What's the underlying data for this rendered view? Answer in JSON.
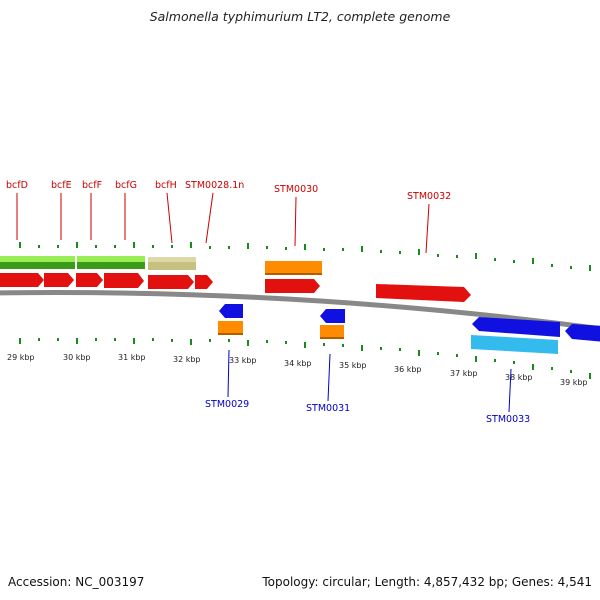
{
  "title": "Salmonella typhimurium LT2, complete genome",
  "footer": {
    "accession": "Accession: NC_003197",
    "stats": "Topology: circular; Length: 4,857,432 bp; Genes: 4,541"
  },
  "colors": {
    "forward_gene": "#e31010",
    "reverse_gene": "#1010e0",
    "forward_label": "#cc0000",
    "reverse_label": "#0000cc",
    "forward_feature": "#ff8c00",
    "reverse_feature": "#33bbee",
    "tick": "#1a8a1a",
    "backbone": "#888888",
    "operon_light": "#99ee55",
    "operon_dark": "#3a9a1a",
    "operon_tan": "#c8c080"
  },
  "scale_labels": [
    "29 kbp",
    "30 kbp",
    "31 kbp",
    "32 kbp",
    "33 kbp",
    "34 kbp",
    "35 kbp",
    "36 kbp",
    "37 kbp",
    "38 kbp",
    "39 kbp"
  ],
  "forward_gene_labels": [
    "bcfD",
    "bcfE",
    "bcfF",
    "bcfG",
    "bcfH",
    "STM0028.1n",
    "STM0030",
    "STM0032"
  ],
  "reverse_gene_labels": [
    "STM0029",
    "STM0031",
    "STM0033"
  ]
}
